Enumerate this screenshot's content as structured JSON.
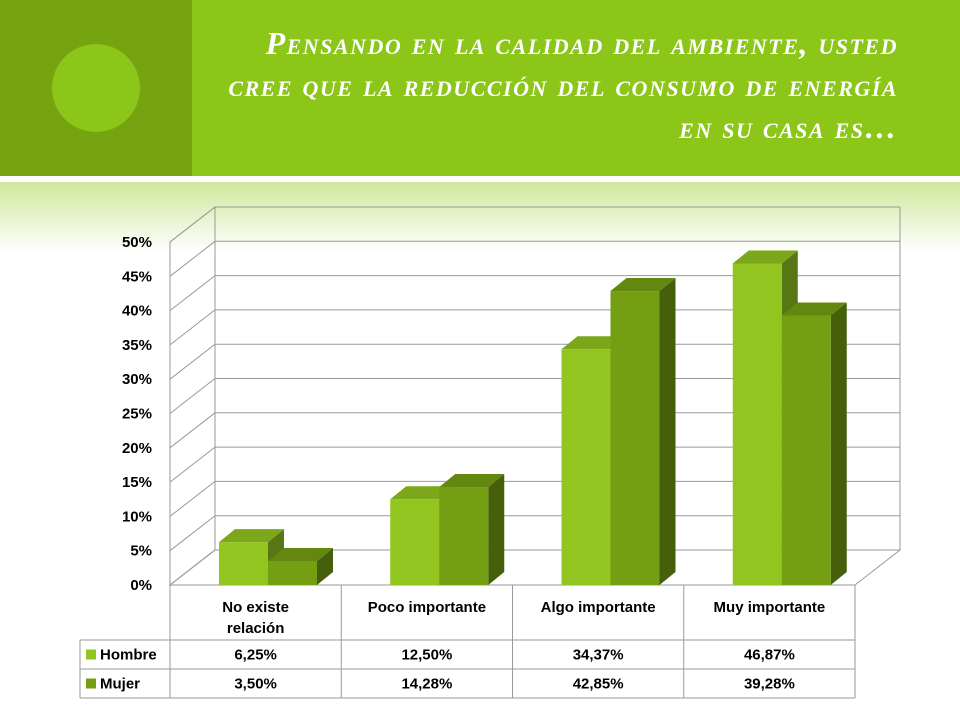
{
  "title": "Pensando en la calidad del ambiente, usted cree que la reducción del consumo de energía en su casa es…",
  "colors": {
    "header": "#8cc619",
    "header_side": "#76a411",
    "hombre": "#92c51f",
    "mujer": "#749f12"
  },
  "chart_data": {
    "type": "bar",
    "categories": [
      "No existe relación",
      "Poco importante",
      "Algo importante",
      "Muy importante"
    ],
    "series": [
      {
        "name": "Hombre",
        "values": [
          6.25,
          12.5,
          34.37,
          46.87
        ],
        "labels": [
          "6,25%",
          "12,50%",
          "34,37%",
          "46,87%"
        ]
      },
      {
        "name": "Mujer",
        "values": [
          3.5,
          14.28,
          42.85,
          39.28
        ],
        "labels": [
          "3,50%",
          "14,28%",
          "42,85%",
          "39,28%"
        ]
      }
    ],
    "ylim": [
      0,
      50
    ],
    "yticks": [
      "0%",
      "5%",
      "10%",
      "15%",
      "20%",
      "25%",
      "30%",
      "35%",
      "40%",
      "45%",
      "50%"
    ],
    "grid": true,
    "three_d": true,
    "legend": "data table below chart"
  }
}
